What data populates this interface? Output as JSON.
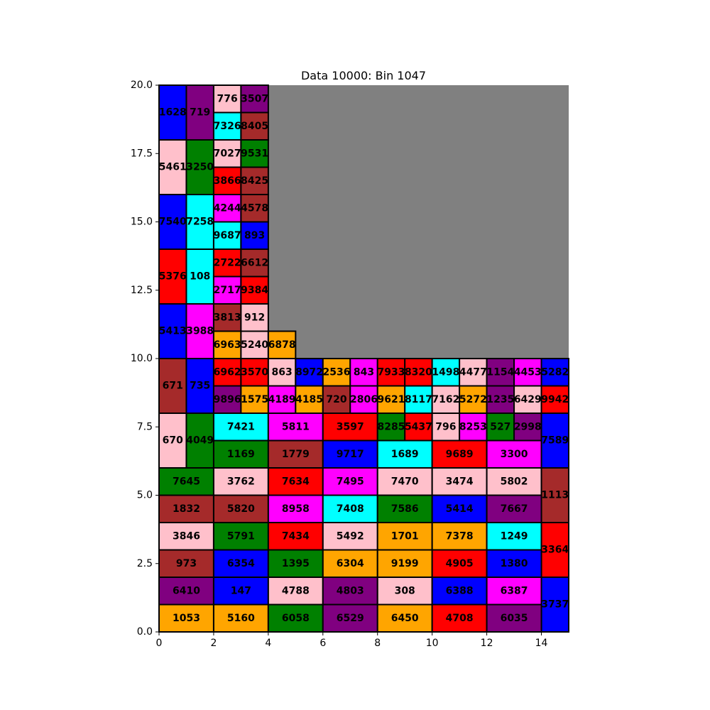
{
  "chart_data": {
    "type": "rectangle-packing",
    "title": "Data 10000: Bin 1047",
    "xlim": [
      0,
      15
    ],
    "ylim": [
      0,
      20
    ],
    "xticks": [
      "0",
      "2",
      "4",
      "6",
      "8",
      "10",
      "12",
      "14"
    ],
    "yticks": [
      "0.0",
      "2.5",
      "5.0",
      "7.5",
      "10.0",
      "12.5",
      "15.0",
      "17.5",
      "20.0"
    ],
    "empty_region": {
      "x": [
        4,
        15
      ],
      "y": [
        10,
        20
      ],
      "color": "#808080"
    },
    "colors": {
      "blue": "#0000ff",
      "purple": "#800080",
      "pink": "#ffc0cb",
      "brown": "#a52a2a",
      "cyan": "#00ffff",
      "green": "#008000",
      "red": "#ff0000",
      "magenta": "#ff00ff",
      "orange": "#ffa500",
      "gray": "#808080"
    },
    "rects": [
      {
        "label": "1628",
        "x": 0,
        "y": 18,
        "w": 1,
        "h": 2,
        "color": "blue"
      },
      {
        "label": "719",
        "x": 1,
        "y": 18,
        "w": 1,
        "h": 2,
        "color": "purple"
      },
      {
        "label": "776",
        "x": 2,
        "y": 19,
        "w": 1,
        "h": 1,
        "color": "pink"
      },
      {
        "label": "3507",
        "x": 3,
        "y": 19,
        "w": 1,
        "h": 1,
        "color": "purple"
      },
      {
        "label": "7326",
        "x": 2,
        "y": 18,
        "w": 1,
        "h": 1,
        "color": "cyan"
      },
      {
        "label": "8405",
        "x": 3,
        "y": 18,
        "w": 1,
        "h": 1,
        "color": "brown"
      },
      {
        "label": "5461",
        "x": 0,
        "y": 16,
        "w": 1,
        "h": 2,
        "color": "pink"
      },
      {
        "label": "3250",
        "x": 1,
        "y": 16,
        "w": 1,
        "h": 2,
        "color": "green"
      },
      {
        "label": "7027",
        "x": 2,
        "y": 17,
        "w": 1,
        "h": 1,
        "color": "pink"
      },
      {
        "label": "9531",
        "x": 3,
        "y": 17,
        "w": 1,
        "h": 1,
        "color": "green"
      },
      {
        "label": "3866",
        "x": 2,
        "y": 16,
        "w": 1,
        "h": 1,
        "color": "red"
      },
      {
        "label": "8425",
        "x": 3,
        "y": 16,
        "w": 1,
        "h": 1,
        "color": "brown"
      },
      {
        "label": "7540",
        "x": 0,
        "y": 14,
        "w": 1,
        "h": 2,
        "color": "blue"
      },
      {
        "label": "7258",
        "x": 1,
        "y": 14,
        "w": 1,
        "h": 2,
        "color": "cyan"
      },
      {
        "label": "4244",
        "x": 2,
        "y": 15,
        "w": 1,
        "h": 1,
        "color": "magenta"
      },
      {
        "label": "4578",
        "x": 3,
        "y": 15,
        "w": 1,
        "h": 1,
        "color": "brown"
      },
      {
        "label": "9687",
        "x": 2,
        "y": 14,
        "w": 1,
        "h": 1,
        "color": "cyan"
      },
      {
        "label": "893",
        "x": 3,
        "y": 14,
        "w": 1,
        "h": 1,
        "color": "blue"
      },
      {
        "label": "5376",
        "x": 0,
        "y": 12,
        "w": 1,
        "h": 2,
        "color": "red"
      },
      {
        "label": "108",
        "x": 1,
        "y": 12,
        "w": 1,
        "h": 2,
        "color": "cyan"
      },
      {
        "label": "2722",
        "x": 2,
        "y": 13,
        "w": 1,
        "h": 1,
        "color": "red"
      },
      {
        "label": "6612",
        "x": 3,
        "y": 13,
        "w": 1,
        "h": 1,
        "color": "brown"
      },
      {
        "label": "2717",
        "x": 2,
        "y": 12,
        "w": 1,
        "h": 1,
        "color": "magenta"
      },
      {
        "label": "9384",
        "x": 3,
        "y": 12,
        "w": 1,
        "h": 1,
        "color": "red"
      },
      {
        "label": "5413",
        "x": 0,
        "y": 10,
        "w": 1,
        "h": 2,
        "color": "blue"
      },
      {
        "label": "3988",
        "x": 1,
        "y": 10,
        "w": 1,
        "h": 2,
        "color": "magenta"
      },
      {
        "label": "3813",
        "x": 2,
        "y": 11,
        "w": 1,
        "h": 1,
        "color": "brown"
      },
      {
        "label": "912",
        "x": 3,
        "y": 11,
        "w": 1,
        "h": 1,
        "color": "pink"
      },
      {
        "label": "6963",
        "x": 2,
        "y": 10,
        "w": 1,
        "h": 1,
        "color": "orange"
      },
      {
        "label": "5240",
        "x": 3,
        "y": 10,
        "w": 1,
        "h": 1,
        "color": "pink"
      },
      {
        "label": "6878",
        "x": 4,
        "y": 10,
        "w": 1,
        "h": 1,
        "color": "orange"
      },
      {
        "label": "671",
        "x": 0,
        "y": 8,
        "w": 1,
        "h": 2,
        "color": "brown"
      },
      {
        "label": "735",
        "x": 1,
        "y": 8,
        "w": 1,
        "h": 2,
        "color": "blue"
      },
      {
        "label": "6962",
        "x": 2,
        "y": 9,
        "w": 1,
        "h": 1,
        "color": "red"
      },
      {
        "label": "3570",
        "x": 3,
        "y": 9,
        "w": 1,
        "h": 1,
        "color": "red"
      },
      {
        "label": "863",
        "x": 4,
        "y": 9,
        "w": 1,
        "h": 1,
        "color": "pink"
      },
      {
        "label": "8972",
        "x": 5,
        "y": 9,
        "w": 1,
        "h": 1,
        "color": "blue"
      },
      {
        "label": "2536",
        "x": 6,
        "y": 9,
        "w": 1,
        "h": 1,
        "color": "orange"
      },
      {
        "label": "843",
        "x": 7,
        "y": 9,
        "w": 1,
        "h": 1,
        "color": "magenta"
      },
      {
        "label": "7933",
        "x": 8,
        "y": 9,
        "w": 1,
        "h": 1,
        "color": "red"
      },
      {
        "label": "8320",
        "x": 9,
        "y": 9,
        "w": 1,
        "h": 1,
        "color": "red"
      },
      {
        "label": "1498",
        "x": 10,
        "y": 9,
        "w": 1,
        "h": 1,
        "color": "cyan"
      },
      {
        "label": "4477",
        "x": 11,
        "y": 9,
        "w": 1,
        "h": 1,
        "color": "pink"
      },
      {
        "label": "1154",
        "x": 12,
        "y": 9,
        "w": 1,
        "h": 1,
        "color": "purple"
      },
      {
        "label": "4453",
        "x": 13,
        "y": 9,
        "w": 1,
        "h": 1,
        "color": "magenta"
      },
      {
        "label": "5282",
        "x": 14,
        "y": 9,
        "w": 1,
        "h": 1,
        "color": "blue"
      },
      {
        "label": "9896",
        "x": 2,
        "y": 8,
        "w": 1,
        "h": 1,
        "color": "purple"
      },
      {
        "label": "1575",
        "x": 3,
        "y": 8,
        "w": 1,
        "h": 1,
        "color": "orange"
      },
      {
        "label": "4189",
        "x": 4,
        "y": 8,
        "w": 1,
        "h": 1,
        "color": "magenta"
      },
      {
        "label": "4185",
        "x": 5,
        "y": 8,
        "w": 1,
        "h": 1,
        "color": "orange"
      },
      {
        "label": "720",
        "x": 6,
        "y": 8,
        "w": 1,
        "h": 1,
        "color": "brown"
      },
      {
        "label": "2806",
        "x": 7,
        "y": 8,
        "w": 1,
        "h": 1,
        "color": "magenta"
      },
      {
        "label": "9621",
        "x": 8,
        "y": 8,
        "w": 1,
        "h": 1,
        "color": "orange"
      },
      {
        "label": "8117",
        "x": 9,
        "y": 8,
        "w": 1,
        "h": 1,
        "color": "cyan"
      },
      {
        "label": "7162",
        "x": 10,
        "y": 8,
        "w": 1,
        "h": 1,
        "color": "pink"
      },
      {
        "label": "5272",
        "x": 11,
        "y": 8,
        "w": 1,
        "h": 1,
        "color": "orange"
      },
      {
        "label": "1235",
        "x": 12,
        "y": 8,
        "w": 1,
        "h": 1,
        "color": "purple"
      },
      {
        "label": "6429",
        "x": 13,
        "y": 8,
        "w": 1,
        "h": 1,
        "color": "pink"
      },
      {
        "label": "9942",
        "x": 14,
        "y": 8,
        "w": 1,
        "h": 1,
        "color": "red"
      },
      {
        "label": "670",
        "x": 0,
        "y": 6,
        "w": 1,
        "h": 2,
        "color": "pink"
      },
      {
        "label": "4049",
        "x": 1,
        "y": 6,
        "w": 1,
        "h": 2,
        "color": "green"
      },
      {
        "label": "7421",
        "x": 2,
        "y": 7,
        "w": 2,
        "h": 1,
        "color": "cyan"
      },
      {
        "label": "5811",
        "x": 4,
        "y": 7,
        "w": 2,
        "h": 1,
        "color": "magenta"
      },
      {
        "label": "3597",
        "x": 6,
        "y": 7,
        "w": 2,
        "h": 1,
        "color": "red"
      },
      {
        "label": "8285",
        "x": 8,
        "y": 7,
        "w": 1,
        "h": 1,
        "color": "green"
      },
      {
        "label": "5437",
        "x": 9,
        "y": 7,
        "w": 1,
        "h": 1,
        "color": "red"
      },
      {
        "label": "796",
        "x": 10,
        "y": 7,
        "w": 1,
        "h": 1,
        "color": "pink"
      },
      {
        "label": "8253",
        "x": 11,
        "y": 7,
        "w": 1,
        "h": 1,
        "color": "magenta"
      },
      {
        "label": "527",
        "x": 12,
        "y": 7,
        "w": 1,
        "h": 1,
        "color": "green"
      },
      {
        "label": "2998",
        "x": 13,
        "y": 7,
        "w": 1,
        "h": 1,
        "color": "purple"
      },
      {
        "label": "7589",
        "x": 14,
        "y": 6,
        "w": 1,
        "h": 2,
        "color": "blue"
      },
      {
        "label": "1169",
        "x": 2,
        "y": 6,
        "w": 2,
        "h": 1,
        "color": "green"
      },
      {
        "label": "1779",
        "x": 4,
        "y": 6,
        "w": 2,
        "h": 1,
        "color": "brown"
      },
      {
        "label": "9717",
        "x": 6,
        "y": 6,
        "w": 2,
        "h": 1,
        "color": "blue"
      },
      {
        "label": "1689",
        "x": 8,
        "y": 6,
        "w": 2,
        "h": 1,
        "color": "cyan"
      },
      {
        "label": "9689",
        "x": 10,
        "y": 6,
        "w": 2,
        "h": 1,
        "color": "red"
      },
      {
        "label": "3300",
        "x": 12,
        "y": 6,
        "w": 2,
        "h": 1,
        "color": "magenta"
      },
      {
        "label": "7645",
        "x": 0,
        "y": 5,
        "w": 2,
        "h": 1,
        "color": "green"
      },
      {
        "label": "3762",
        "x": 2,
        "y": 5,
        "w": 2,
        "h": 1,
        "color": "pink"
      },
      {
        "label": "7634",
        "x": 4,
        "y": 5,
        "w": 2,
        "h": 1,
        "color": "red"
      },
      {
        "label": "7495",
        "x": 6,
        "y": 5,
        "w": 2,
        "h": 1,
        "color": "magenta"
      },
      {
        "label": "7470",
        "x": 8,
        "y": 5,
        "w": 2,
        "h": 1,
        "color": "pink"
      },
      {
        "label": "3474",
        "x": 10,
        "y": 5,
        "w": 2,
        "h": 1,
        "color": "pink"
      },
      {
        "label": "5802",
        "x": 12,
        "y": 5,
        "w": 2,
        "h": 1,
        "color": "pink"
      },
      {
        "label": "1113",
        "x": 14,
        "y": 4,
        "w": 1,
        "h": 2,
        "color": "brown"
      },
      {
        "label": "1832",
        "x": 0,
        "y": 4,
        "w": 2,
        "h": 1,
        "color": "brown"
      },
      {
        "label": "5820",
        "x": 2,
        "y": 4,
        "w": 2,
        "h": 1,
        "color": "brown"
      },
      {
        "label": "8958",
        "x": 4,
        "y": 4,
        "w": 2,
        "h": 1,
        "color": "magenta"
      },
      {
        "label": "7408",
        "x": 6,
        "y": 4,
        "w": 2,
        "h": 1,
        "color": "cyan"
      },
      {
        "label": "7586",
        "x": 8,
        "y": 4,
        "w": 2,
        "h": 1,
        "color": "green"
      },
      {
        "label": "5414",
        "x": 10,
        "y": 4,
        "w": 2,
        "h": 1,
        "color": "blue"
      },
      {
        "label": "7667",
        "x": 12,
        "y": 4,
        "w": 2,
        "h": 1,
        "color": "purple"
      },
      {
        "label": "3846",
        "x": 0,
        "y": 3,
        "w": 2,
        "h": 1,
        "color": "pink"
      },
      {
        "label": "5791",
        "x": 2,
        "y": 3,
        "w": 2,
        "h": 1,
        "color": "green"
      },
      {
        "label": "7434",
        "x": 4,
        "y": 3,
        "w": 2,
        "h": 1,
        "color": "red"
      },
      {
        "label": "5492",
        "x": 6,
        "y": 3,
        "w": 2,
        "h": 1,
        "color": "pink"
      },
      {
        "label": "1701",
        "x": 8,
        "y": 3,
        "w": 2,
        "h": 1,
        "color": "orange"
      },
      {
        "label": "7378",
        "x": 10,
        "y": 3,
        "w": 2,
        "h": 1,
        "color": "orange"
      },
      {
        "label": "1249",
        "x": 12,
        "y": 3,
        "w": 2,
        "h": 1,
        "color": "cyan"
      },
      {
        "label": "3364",
        "x": 14,
        "y": 2,
        "w": 1,
        "h": 2,
        "color": "red"
      },
      {
        "label": "973",
        "x": 0,
        "y": 2,
        "w": 2,
        "h": 1,
        "color": "brown"
      },
      {
        "label": "6354",
        "x": 2,
        "y": 2,
        "w": 2,
        "h": 1,
        "color": "blue"
      },
      {
        "label": "1395",
        "x": 4,
        "y": 2,
        "w": 2,
        "h": 1,
        "color": "green"
      },
      {
        "label": "6304",
        "x": 6,
        "y": 2,
        "w": 2,
        "h": 1,
        "color": "orange"
      },
      {
        "label": "9199",
        "x": 8,
        "y": 2,
        "w": 2,
        "h": 1,
        "color": "orange"
      },
      {
        "label": "4905",
        "x": 10,
        "y": 2,
        "w": 2,
        "h": 1,
        "color": "red"
      },
      {
        "label": "1380",
        "x": 12,
        "y": 2,
        "w": 2,
        "h": 1,
        "color": "blue"
      },
      {
        "label": "6410",
        "x": 0,
        "y": 1,
        "w": 2,
        "h": 1,
        "color": "purple"
      },
      {
        "label": "147",
        "x": 2,
        "y": 1,
        "w": 2,
        "h": 1,
        "color": "blue"
      },
      {
        "label": "4788",
        "x": 4,
        "y": 1,
        "w": 2,
        "h": 1,
        "color": "pink"
      },
      {
        "label": "4803",
        "x": 6,
        "y": 1,
        "w": 2,
        "h": 1,
        "color": "purple"
      },
      {
        "label": "308",
        "x": 8,
        "y": 1,
        "w": 2,
        "h": 1,
        "color": "pink"
      },
      {
        "label": "6388",
        "x": 10,
        "y": 1,
        "w": 2,
        "h": 1,
        "color": "blue"
      },
      {
        "label": "6387",
        "x": 12,
        "y": 1,
        "w": 2,
        "h": 1,
        "color": "magenta"
      },
      {
        "label": "3737",
        "x": 14,
        "y": 0,
        "w": 1,
        "h": 2,
        "color": "blue"
      },
      {
        "label": "1053",
        "x": 0,
        "y": 0,
        "w": 2,
        "h": 1,
        "color": "orange"
      },
      {
        "label": "5160",
        "x": 2,
        "y": 0,
        "w": 2,
        "h": 1,
        "color": "orange"
      },
      {
        "label": "6058",
        "x": 4,
        "y": 0,
        "w": 2,
        "h": 1,
        "color": "green"
      },
      {
        "label": "6529",
        "x": 6,
        "y": 0,
        "w": 2,
        "h": 1,
        "color": "purple"
      },
      {
        "label": "6450",
        "x": 8,
        "y": 0,
        "w": 2,
        "h": 1,
        "color": "orange"
      },
      {
        "label": "4708",
        "x": 10,
        "y": 0,
        "w": 2,
        "h": 1,
        "color": "red"
      },
      {
        "label": "6035",
        "x": 12,
        "y": 0,
        "w": 2,
        "h": 1,
        "color": "purple"
      }
    ]
  }
}
